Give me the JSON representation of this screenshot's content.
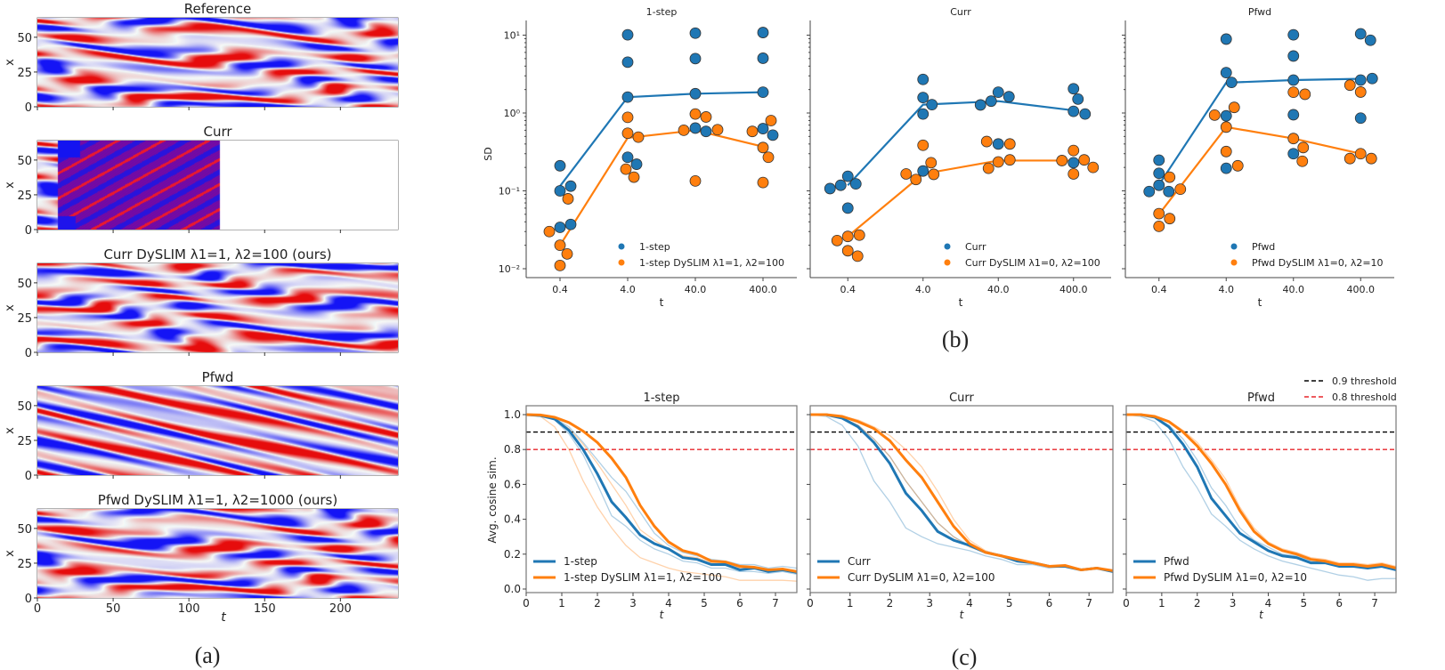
{
  "panel_a": {
    "label": "(a)",
    "xlabel": "t",
    "ylabel": "x",
    "xticks": [
      "0",
      "50",
      "100",
      "150",
      "200"
    ],
    "yticks": [
      "0",
      "25",
      "50"
    ],
    "xlim": [
      0,
      238
    ],
    "ylim": [
      0,
      64
    ],
    "colormap": "bwr",
    "heatmaps": [
      {
        "title": "Reference",
        "kind": "reference"
      },
      {
        "title": "Curr",
        "kind": "curr-unstable"
      },
      {
        "title": "Curr DySLIM λ1=1, λ2=100 (ours)",
        "kind": "reference-like"
      },
      {
        "title": "Pfwd",
        "kind": "pfwd"
      },
      {
        "title": "Pfwd DySLIM λ1=1, λ2=1000 (ours)",
        "kind": "reference-like"
      }
    ]
  },
  "panel_b": {
    "label": "(b)"
  },
  "panel_c": {
    "label": "(c)",
    "threshold_legend": [
      {
        "label": "0.9 threshold",
        "value": 0.9,
        "color": "#000000"
      },
      {
        "label": "0.8 threshold",
        "value": 0.8,
        "color": "#e8262b"
      }
    ]
  },
  "colors": {
    "baseline": "#1f77b4",
    "dyslim": "#ff7f0e"
  },
  "chart_data": [
    {
      "type": "scatter",
      "yscale": "log",
      "title": "1-step",
      "xlabel": "t",
      "ylabel": "SD",
      "categories": [
        "0.4",
        "4.0",
        "40.0",
        "400.0"
      ],
      "ytick_labels": [
        "10⁻²",
        "10⁻¹",
        "10⁰",
        "10¹"
      ],
      "yticks": [
        0.01,
        0.1,
        1,
        10
      ],
      "ylim": [
        0.008,
        15
      ],
      "legend": "bottom-right",
      "series": [
        {
          "name": "1-step",
          "points": [
            [
              0.21,
              0.1,
              0.115,
              0.034,
              0.037
            ],
            [
              10.1,
              4.5,
              1.6,
              0.27,
              0.22
            ],
            [
              10.6,
              5.0,
              1.77,
              0.64,
              0.58
            ],
            [
              10.8,
              5.05,
              1.85,
              0.63,
              0.52
            ]
          ],
          "mean": [
            0.115,
            1.6,
            1.77,
            1.85
          ]
        },
        {
          "name": "1-step DySLIM λ1=1, λ2=100",
          "points": [
            [
              0.079,
              0.03,
              0.02,
              0.0155,
              0.011
            ],
            [
              0.88,
              0.55,
              0.49,
              0.19,
              0.15
            ],
            [
              0.97,
              0.89,
              0.6,
              0.61,
              0.134
            ],
            [
              0.8,
              0.58,
              0.36,
              0.27,
              0.128
            ]
          ],
          "mean": [
            0.02,
            0.48,
            0.6,
            0.37
          ]
        }
      ]
    },
    {
      "type": "scatter",
      "yscale": "log",
      "title": "Curr",
      "xlabel": "t",
      "categories": [
        "0.4",
        "4.0",
        "40.0",
        "400.0"
      ],
      "yticks": [
        0.01,
        0.1,
        1,
        10
      ],
      "ylim": [
        0.008,
        15
      ],
      "legend": "bottom-right",
      "series": [
        {
          "name": "Curr",
          "points": [
            [
              0.154,
              0.123,
              0.118,
              0.107,
              0.06
            ],
            [
              2.7,
              1.58,
              1.28,
              0.97,
              0.18
            ],
            [
              1.85,
              1.62,
              1.42,
              1.27,
              0.4
            ],
            [
              2.05,
              1.51,
              1.05,
              0.97,
              0.23
            ]
          ],
          "mean": [
            0.118,
            1.28,
            1.42,
            1.08
          ]
        },
        {
          "name": "Curr DySLIM λ1=0, λ2=100",
          "points": [
            [
              0.026,
              0.027,
              0.023,
              0.017,
              0.0145
            ],
            [
              0.385,
              0.23,
              0.163,
              0.14,
              0.165
            ],
            [
              0.4,
              0.43,
              0.235,
              0.25,
              0.195
            ],
            [
              0.33,
              0.25,
              0.245,
              0.2,
              0.165
            ]
          ],
          "mean": [
            0.026,
            0.165,
            0.245,
            0.245
          ]
        }
      ]
    },
    {
      "type": "scatter",
      "yscale": "log",
      "title": "Pfwd",
      "xlabel": "t",
      "categories": [
        "0.4",
        "4.0",
        "40.0",
        "400.0"
      ],
      "yticks": [
        0.01,
        0.1,
        1,
        10
      ],
      "ylim": [
        0.008,
        15
      ],
      "legend": "bottom-right",
      "series": [
        {
          "name": "Pfwd",
          "points": [
            [
              0.248,
              0.168,
              0.118,
              0.098,
              0.098
            ],
            [
              8.9,
              3.3,
              2.47,
              0.92,
              0.195
            ],
            [
              10.1,
              5.4,
              2.65,
              0.95,
              0.3
            ],
            [
              10.4,
              8.6,
              2.65,
              2.77,
              0.86
            ]
          ],
          "mean": [
            0.12,
            2.45,
            2.65,
            2.75
          ]
        },
        {
          "name": "Pfwd DySLIM λ1=0, λ2=10",
          "points": [
            [
              0.15,
              0.105,
              0.051,
              0.044,
              0.035
            ],
            [
              1.18,
              0.94,
              0.66,
              0.32,
              0.21
            ],
            [
              1.85,
              1.74,
              0.47,
              0.36,
              0.24
            ],
            [
              2.28,
              1.86,
              0.3,
              0.26,
              0.26
            ]
          ],
          "mean": [
            0.05,
            0.66,
            0.47,
            0.3
          ]
        }
      ]
    },
    {
      "type": "line",
      "title": "1-step",
      "xlabel": "t",
      "ylabel": "Avg. cosine sim.",
      "xlim": [
        0,
        7.6
      ],
      "ylim": [
        -0.02,
        1.05
      ],
      "xticks": [
        "0",
        "1",
        "2",
        "3",
        "4",
        "5",
        "6",
        "7"
      ],
      "yticks": [
        "0.0",
        "0.2",
        "0.4",
        "0.6",
        "0.8",
        "1.0"
      ],
      "x": [
        0,
        0.4,
        0.8,
        1.2,
        1.6,
        2.0,
        2.4,
        2.8,
        3.2,
        3.6,
        4.0,
        4.4,
        4.8,
        5.2,
        5.6,
        6.0,
        6.4,
        6.8,
        7.2,
        7.6
      ],
      "legend": "bottom-left",
      "series": [
        {
          "name": "1-step",
          "values": [
            1.0,
            0.995,
            0.975,
            0.91,
            0.8,
            0.66,
            0.5,
            0.41,
            0.31,
            0.26,
            0.23,
            0.18,
            0.17,
            0.14,
            0.14,
            0.11,
            0.12,
            0.1,
            0.11,
            0.095
          ],
          "runs": [
            [
              1,
              0.99,
              0.97,
              0.89,
              0.77,
              0.6,
              0.42,
              0.36,
              0.28,
              0.23,
              0.2,
              0.16,
              0.15,
              0.12,
              0.12,
              0.1,
              0.1,
              0.09,
              0.1,
              0.085
            ],
            [
              1,
              0.995,
              0.98,
              0.93,
              0.84,
              0.74,
              0.64,
              0.56,
              0.44,
              0.32,
              0.25,
              0.21,
              0.19,
              0.17,
              0.16,
              0.14,
              0.14,
              0.12,
              0.13,
              0.12
            ]
          ]
        },
        {
          "name": "1-step DySLIM λ1=1, λ2=100",
          "values": [
            1.0,
            0.998,
            0.985,
            0.955,
            0.905,
            0.84,
            0.75,
            0.64,
            0.48,
            0.36,
            0.27,
            0.22,
            0.2,
            0.16,
            0.155,
            0.13,
            0.125,
            0.11,
            0.115,
            0.1
          ],
          "runs": [
            [
              1,
              0.99,
              0.93,
              0.8,
              0.62,
              0.47,
              0.35,
              0.25,
              0.18,
              0.15,
              0.12,
              0.1,
              0.09,
              0.08,
              0.07,
              0.05,
              0.05,
              0.05,
              0.05,
              0.045
            ],
            [
              1,
              0.995,
              0.975,
              0.92,
              0.83,
              0.72,
              0.6,
              0.48,
              0.34,
              0.28,
              0.23,
              0.19,
              0.18,
              0.15,
              0.15,
              0.12,
              0.12,
              0.1,
              0.11,
              0.1
            ]
          ]
        }
      ]
    },
    {
      "type": "line",
      "title": "Curr",
      "xlabel": "t",
      "xlim": [
        0,
        7.6
      ],
      "ylim": [
        -0.02,
        1.05
      ],
      "xticks": [
        "0",
        "1",
        "2",
        "3",
        "4",
        "5",
        "6",
        "7"
      ],
      "x": [
        0,
        0.4,
        0.8,
        1.2,
        1.6,
        2.0,
        2.4,
        2.8,
        3.2,
        3.6,
        4.0,
        4.4,
        4.8,
        5.2,
        5.6,
        6.0,
        6.4,
        6.8,
        7.2,
        7.6
      ],
      "legend": "bottom-left",
      "series": [
        {
          "name": "Curr",
          "values": [
            1,
            1,
            0.98,
            0.93,
            0.84,
            0.72,
            0.55,
            0.45,
            0.33,
            0.28,
            0.25,
            0.21,
            0.19,
            0.16,
            0.15,
            0.13,
            0.13,
            0.11,
            0.12,
            0.1
          ],
          "runs": [
            [
              1,
              0.99,
              0.94,
              0.82,
              0.62,
              0.5,
              0.35,
              0.3,
              0.26,
              0.24,
              0.22,
              0.19,
              0.17,
              0.14,
              0.14,
              0.12,
              0.13,
              0.11,
              0.12,
              0.1
            ],
            [
              1,
              1,
              0.98,
              0.94,
              0.86,
              0.76,
              0.62,
              0.5,
              0.38,
              0.3,
              0.25,
              0.21,
              0.19,
              0.16,
              0.15,
              0.13,
              0.13,
              0.11,
              0.12,
              0.1
            ]
          ]
        },
        {
          "name": "Curr DySLIM λ1=0, λ2=100",
          "values": [
            1,
            1,
            0.99,
            0.96,
            0.92,
            0.85,
            0.74,
            0.64,
            0.5,
            0.36,
            0.26,
            0.21,
            0.19,
            0.17,
            0.15,
            0.13,
            0.135,
            0.11,
            0.12,
            0.105
          ],
          "runs": [
            [
              1,
              1,
              0.99,
              0.97,
              0.93,
              0.88,
              0.8,
              0.7,
              0.56,
              0.4,
              0.28,
              0.22,
              0.19,
              0.17,
              0.15,
              0.13,
              0.135,
              0.11,
              0.12,
              0.105
            ],
            [
              1,
              1,
              0.98,
              0.94,
              0.86,
              0.76,
              0.62,
              0.5,
              0.38,
              0.3,
              0.24,
              0.21,
              0.19,
              0.17,
              0.15,
              0.13,
              0.13,
              0.11,
              0.12,
              0.1
            ]
          ]
        }
      ]
    },
    {
      "type": "line",
      "title": "Pfwd",
      "xlabel": "t",
      "xlim": [
        0,
        7.6
      ],
      "ylim": [
        -0.02,
        1.05
      ],
      "xticks": [
        "0",
        "1",
        "2",
        "3",
        "4",
        "5",
        "6",
        "7"
      ],
      "x": [
        0,
        0.4,
        0.8,
        1.2,
        1.6,
        2.0,
        2.4,
        2.8,
        3.2,
        3.6,
        4.0,
        4.4,
        4.8,
        5.2,
        5.6,
        6.0,
        6.4,
        6.8,
        7.2,
        7.6
      ],
      "legend": "bottom-left",
      "series": [
        {
          "name": "Pfwd",
          "values": [
            1,
            1,
            0.985,
            0.93,
            0.83,
            0.7,
            0.52,
            0.42,
            0.32,
            0.27,
            0.22,
            0.19,
            0.18,
            0.15,
            0.15,
            0.13,
            0.13,
            0.12,
            0.13,
            0.11
          ],
          "runs": [
            [
              1,
              0.99,
              0.96,
              0.86,
              0.7,
              0.58,
              0.43,
              0.36,
              0.28,
              0.23,
              0.19,
              0.16,
              0.14,
              0.12,
              0.1,
              0.08,
              0.07,
              0.05,
              0.06,
              0.06
            ],
            [
              1,
              1,
              0.985,
              0.94,
              0.86,
              0.74,
              0.58,
              0.48,
              0.35,
              0.28,
              0.24,
              0.2,
              0.19,
              0.16,
              0.15,
              0.13,
              0.13,
              0.12,
              0.13,
              0.11
            ]
          ]
        },
        {
          "name": "Pfwd DySLIM λ1=0, λ2=10",
          "values": [
            1,
            1,
            0.99,
            0.96,
            0.9,
            0.82,
            0.72,
            0.6,
            0.45,
            0.33,
            0.26,
            0.22,
            0.2,
            0.17,
            0.16,
            0.14,
            0.14,
            0.13,
            0.14,
            0.12
          ],
          "runs": [
            [
              1,
              1,
              0.99,
              0.965,
              0.91,
              0.84,
              0.74,
              0.63,
              0.47,
              0.35,
              0.27,
              0.23,
              0.21,
              0.18,
              0.17,
              0.15,
              0.15,
              0.14,
              0.15,
              0.13
            ]
          ]
        }
      ]
    }
  ]
}
